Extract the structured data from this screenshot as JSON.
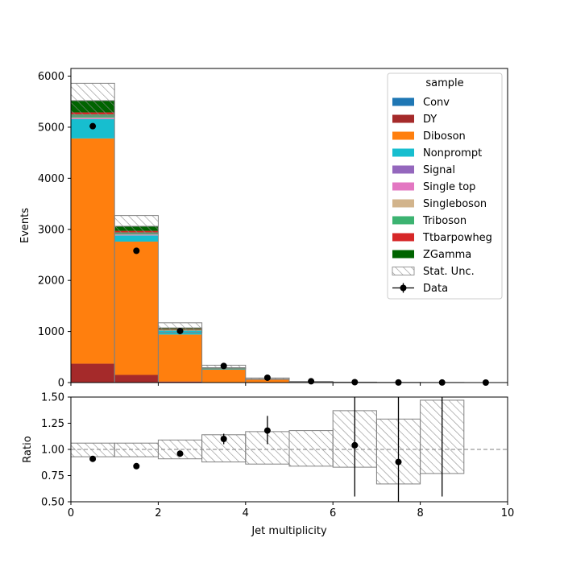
{
  "chart_data": {
    "type": "bar",
    "xlabel": "Jet multiplicity",
    "ylabel": "Events",
    "ratio_ylabel": "Ratio",
    "xlim": [
      0,
      10
    ],
    "ylim": [
      0,
      6150
    ],
    "ratio_ylim": [
      0.5,
      1.5
    ],
    "xticks": [
      "0",
      "2",
      "4",
      "6",
      "8",
      "10"
    ],
    "yticks": [
      "0",
      "1000",
      "2000",
      "3000",
      "4000",
      "5000",
      "6000"
    ],
    "ratio_yticks": [
      "0.50",
      "0.75",
      "1.00",
      "1.25",
      "1.50"
    ],
    "bin_edges": [
      0,
      1,
      2,
      3,
      4,
      5,
      6,
      7,
      8,
      9,
      10
    ],
    "legend_title": "sample",
    "legend_position": "top-right",
    "series": [
      {
        "name": "Conv",
        "color": "#1f77b4",
        "values": [
          0,
          0,
          0,
          0,
          0,
          0,
          0,
          0,
          0,
          0
        ]
      },
      {
        "name": "DY",
        "color": "#a52a2a",
        "values": [
          370,
          150,
          20,
          3,
          1,
          0,
          0,
          0,
          0,
          0
        ]
      },
      {
        "name": "Diboson",
        "color": "#ff7f0e",
        "values": [
          4410,
          2610,
          920,
          250,
          55,
          12,
          4,
          1,
          0,
          0
        ]
      },
      {
        "name": "Nonprompt",
        "color": "#17becf",
        "values": [
          380,
          120,
          70,
          20,
          6,
          2,
          1,
          0,
          0,
          0
        ]
      },
      {
        "name": "Signal",
        "color": "#9467bd",
        "values": [
          0,
          0,
          0,
          0,
          0,
          0,
          0,
          0,
          0,
          0
        ]
      },
      {
        "name": "Single top",
        "color": "#e377c2",
        "values": [
          20,
          15,
          5,
          2,
          0,
          0,
          0,
          0,
          0,
          0
        ]
      },
      {
        "name": "Singleboson",
        "color": "#d2b48c",
        "values": [
          10,
          5,
          2,
          0,
          0,
          0,
          0,
          0,
          0,
          0
        ]
      },
      {
        "name": "Triboson",
        "color": "#3cb371",
        "values": [
          60,
          40,
          18,
          8,
          3,
          1,
          0,
          0,
          0,
          0
        ]
      },
      {
        "name": "Ttbarpowheg",
        "color": "#d62728",
        "values": [
          40,
          30,
          15,
          5,
          2,
          0,
          0,
          0,
          0,
          0
        ]
      },
      {
        "name": "ZGamma",
        "color": "#006400",
        "values": [
          230,
          90,
          20,
          4,
          1,
          0,
          0,
          0,
          0,
          0
        ]
      }
    ],
    "stat_unc_label": "Stat. Unc.",
    "stat_unc_band": {
      "low": [
        5220,
        2920,
        980,
        270,
        62,
        13,
        4,
        1,
        0,
        0
      ],
      "high": [
        5860,
        3270,
        1170,
        340,
        90,
        22,
        9,
        4,
        2,
        0
      ]
    },
    "data_label": "Data",
    "data": {
      "x": [
        0.5,
        1.5,
        2.5,
        3.5,
        4.5,
        5.5,
        6.5,
        7.5,
        8.5,
        9.5
      ],
      "y": [
        5020,
        2580,
        1010,
        325,
        95,
        25,
        8,
        2,
        1,
        0
      ]
    },
    "ratio": {
      "unc_low": [
        0.93,
        0.93,
        0.91,
        0.88,
        0.86,
        0.84,
        0.83,
        0.67,
        0.77,
        null
      ],
      "unc_high": [
        1.06,
        1.06,
        1.09,
        1.14,
        1.17,
        1.18,
        1.37,
        1.29,
        1.47,
        null
      ],
      "points": [
        {
          "x": 0.5,
          "y": 0.91,
          "err_low": 0.0,
          "err_high": 0.0
        },
        {
          "x": 1.5,
          "y": 0.84,
          "err_low": 0.0,
          "err_high": 0.0
        },
        {
          "x": 2.5,
          "y": 0.96,
          "err_low": 0.01,
          "err_high": 0.01
        },
        {
          "x": 3.5,
          "y": 1.1,
          "err_low": 0.05,
          "err_high": 0.05
        },
        {
          "x": 4.5,
          "y": 1.18,
          "err_low": 0.13,
          "err_high": 0.14
        },
        {
          "x": 6.5,
          "y": 1.04,
          "err_low": 0.49,
          "err_high": 0.46
        },
        {
          "x": 7.5,
          "y": 0.88,
          "err_low": 0.38,
          "err_high": 0.62
        },
        {
          "x": 8.5,
          "y": null,
          "err_low": null,
          "err_high": null,
          "bar_low": 0.55,
          "bar_high": 1.5
        }
      ]
    }
  }
}
